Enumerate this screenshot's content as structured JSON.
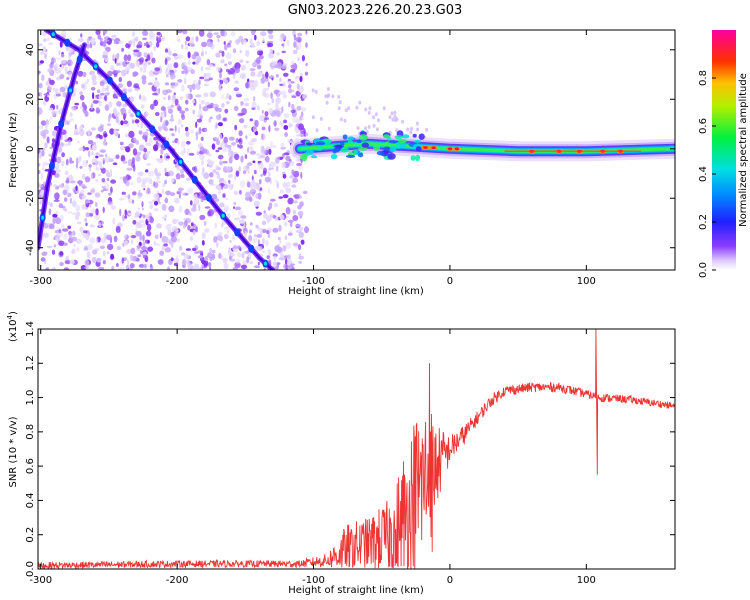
{
  "title": "GN03.2023.226.20.23.G03",
  "chart_data": [
    {
      "type": "heatmap",
      "xlabel": "Height of straight line (km)",
      "ylabel": "Frequency (Hz)",
      "xlim": [
        -302,
        165
      ],
      "ylim": [
        -49,
        48
      ],
      "xticks": [
        -300,
        -200,
        -100,
        0,
        100
      ],
      "yticks": [
        -40,
        -20,
        0,
        20,
        40
      ],
      "colorbar": {
        "label": "Normalized spectral amplitude",
        "range": [
          0,
          1
        ],
        "ticks": [
          "0.0",
          "0.2",
          "0.4",
          "0.6",
          "0.8"
        ],
        "colormap": "rainbow (white/violet low to magenta high)"
      },
      "features": [
        {
          "name": "noise region",
          "x_range": [
            -302,
            -105
          ],
          "y_range": [
            -49,
            48
          ]
        },
        {
          "name": "diagonal streak A",
          "points": [
            [
              -296,
              48
            ],
            [
              -272,
              40
            ],
            [
              -250,
              28
            ],
            [
              -230,
              15
            ],
            [
              -205,
              0
            ],
            [
              -185,
              -14
            ],
            [
              -165,
              -28
            ],
            [
              -140,
              -44
            ],
            [
              -130,
              -49
            ]
          ]
        },
        {
          "name": "diagonal streak B",
          "points": [
            [
              -302,
              -40
            ],
            [
              -295,
              -15
            ],
            [
              -285,
              10
            ],
            [
              -275,
              30
            ],
            [
              -268,
              42
            ]
          ]
        },
        {
          "name": "carrier band",
          "points": [
            [
              -110,
              0
            ],
            [
              -60,
              2
            ],
            [
              -30,
              1
            ],
            [
              0,
              0
            ],
            [
              50,
              -1
            ],
            [
              100,
              -1
            ],
            [
              165,
              0
            ]
          ]
        }
      ]
    },
    {
      "type": "line",
      "xlabel": "Height of straight line (km)",
      "ylabel": "SNR (10 * v/v)",
      "yscale_note": "(x10",
      "yscale_exp": "4",
      "yscale_close": ")",
      "xlim": [
        -302,
        165
      ],
      "ylim": [
        0,
        1.4
      ],
      "xticks": [
        -300,
        -200,
        -100,
        0,
        100
      ],
      "yticks": [
        "0.0",
        "0.2",
        "0.4",
        "0.6",
        "0.8",
        "1.0",
        "1.2",
        "1.4"
      ],
      "color": "#ee3333",
      "trend": {
        "x": [
          -302,
          -200,
          -110,
          -90,
          -75,
          -60,
          -40,
          -30,
          -20,
          -10,
          0,
          10,
          20,
          30,
          40,
          60,
          80,
          100,
          110,
          130,
          165
        ],
        "y": [
          0.02,
          0.03,
          0.03,
          0.05,
          0.12,
          0.15,
          0.2,
          0.35,
          0.5,
          0.6,
          0.7,
          0.78,
          0.88,
          0.98,
          1.04,
          1.06,
          1.06,
          1.02,
          1.0,
          0.99,
          0.95
        ]
      },
      "noise_amplitude": {
        "x": [
          -302,
          -110,
          -90,
          -75,
          -60,
          -45,
          -35,
          -25,
          -15,
          -10,
          0,
          20,
          40,
          165
        ],
        "y": [
          0.02,
          0.02,
          0.04,
          0.15,
          0.15,
          0.22,
          0.4,
          0.5,
          0.45,
          0.25,
          0.08,
          0.04,
          0.03,
          0.02
        ]
      },
      "spikes": [
        {
          "x": 107,
          "y": 1.4
        },
        {
          "x": 108,
          "y": 0.55
        },
        {
          "x": -15,
          "y": 1.2
        },
        {
          "x": -13,
          "y": 0.1
        }
      ]
    }
  ]
}
